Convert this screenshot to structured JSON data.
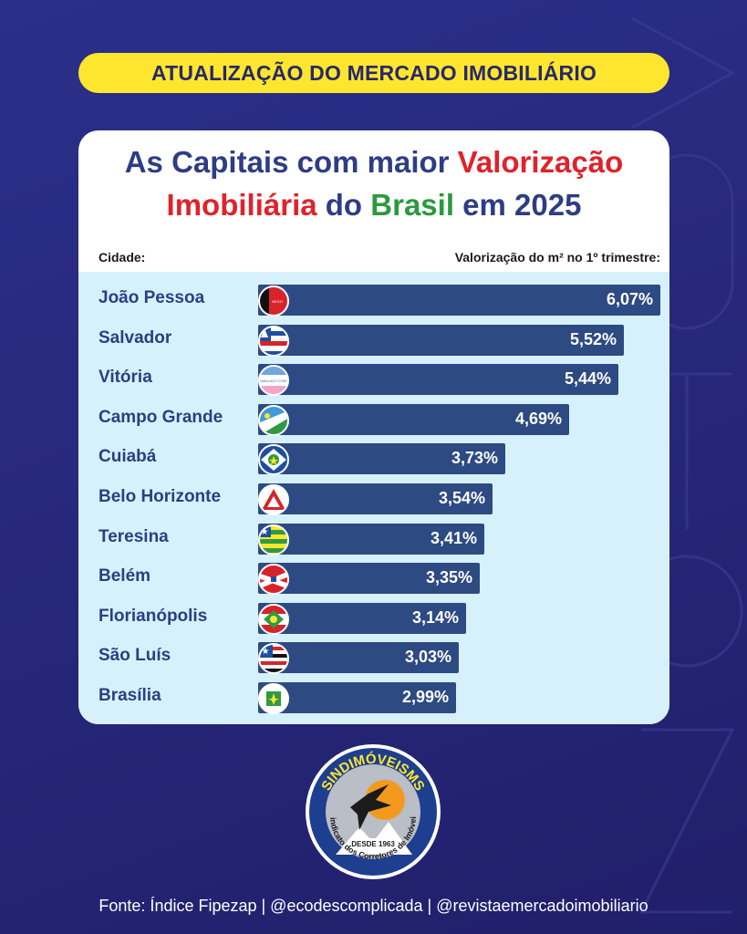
{
  "header_banner": "ATUALIZAÇÃO DO MERCADO IMOBILIÁRIO",
  "title": {
    "line1_a": "As Capitais com maior ",
    "line1_b": "Valorização",
    "line2_a": "Imobiliária",
    "line2_b": " do ",
    "line2_c": "Brasil",
    "line2_d": " em 2025"
  },
  "column_left": "Cidade:",
  "column_right": "Valorização do m² no 1º trimestre:",
  "chart_data": {
    "type": "bar",
    "orientation": "horizontal",
    "categories": [
      "João Pessoa",
      "Salvador",
      "Vitória",
      "Campo Grande",
      "Cuiabá",
      "Belo Horizonte",
      "Teresina",
      "Belém",
      "Florianópolis",
      "São Luís",
      "Brasília"
    ],
    "values": [
      6.07,
      5.52,
      5.44,
      4.69,
      3.73,
      3.54,
      3.41,
      3.35,
      3.14,
      3.03,
      2.99
    ],
    "labels": [
      "6,07%",
      "5,52%",
      "5,44%",
      "4,69%",
      "3,73%",
      "3,54%",
      "3,41%",
      "3,35%",
      "3,14%",
      "3,03%",
      "2,99%"
    ],
    "flags": [
      "paraiba-flag-icon",
      "bahia-flag-icon",
      "espirito-santo-flag-icon",
      "mato-grosso-do-sul-flag-icon",
      "mato-grosso-flag-icon",
      "minas-gerais-flag-icon",
      "piaui-flag-icon",
      "para-flag-icon",
      "santa-catarina-flag-icon",
      "maranhao-flag-icon",
      "distrito-federal-flag-icon"
    ],
    "title": "As Capitais com maior Valorização Imobiliária do Brasil em 2025",
    "xlabel": "Valorização do m² no 1º trimestre:",
    "ylabel": "Cidade:",
    "bar_color": "#2d4a82"
  },
  "logo": {
    "name": "SINDIMÓVEIS MS",
    "subtitle": "Sindicato dos Corretores de Imóveis",
    "since": "DESDE 1963"
  },
  "footer": "Fonte: Índice Fipezap | @ecodescomplicada | @revistaemercadoimobiliario",
  "colors": {
    "background": "#262778",
    "banner": "#ffe62e",
    "title_blue": "#2e3d83",
    "title_red": "#e0222b",
    "title_green": "#2b9a3e",
    "plot_bg": "#d7f1fc"
  }
}
